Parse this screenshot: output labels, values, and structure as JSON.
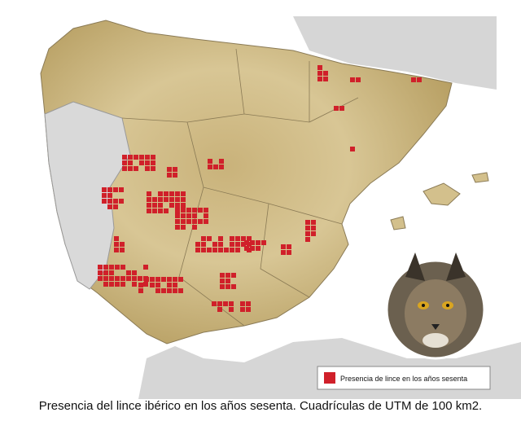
{
  "legend": {
    "label": "Presencia de lince en los años sesenta"
  },
  "caption": "Presencia del lince ibérico en los años sesenta. Cuadrículas de UTM de 100 km2."
}
